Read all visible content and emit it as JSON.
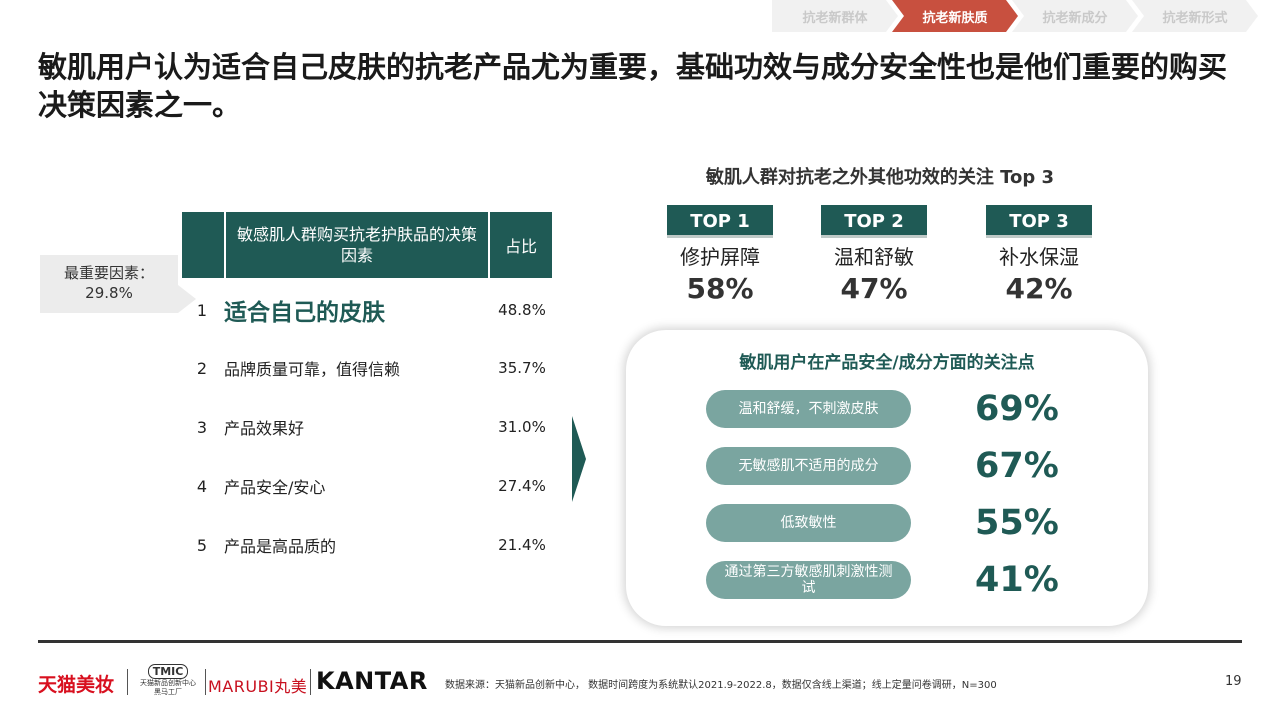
{
  "nav": {
    "steps": [
      {
        "label": "抗老新群体",
        "active": false
      },
      {
        "label": "抗老新肤质",
        "active": true
      },
      {
        "label": "抗老新成分",
        "active": false
      },
      {
        "label": "抗老新形式",
        "active": false
      }
    ]
  },
  "title": "敏肌用户认为适合自己皮肤的抗老产品尤为重要，基础功效与成分安全性也是他们重要的购买决策因素之一。",
  "table": {
    "callout": {
      "label": "最重要因素：",
      "value": "29.8%"
    },
    "header": {
      "factor": "敏感肌人群购买抗老护肤品的决策因素",
      "share": "占比"
    },
    "rows": [
      {
        "rank": "1",
        "label": "适合自己的皮肤",
        "pct": "48.8%"
      },
      {
        "rank": "2",
        "label": "品牌质量可靠，值得信赖",
        "pct": "35.7%"
      },
      {
        "rank": "3",
        "label": "产品效果好",
        "pct": "31.0%"
      },
      {
        "rank": "4",
        "label": "产品安全/安心",
        "pct": "27.4%"
      },
      {
        "rank": "5",
        "label": "产品是高品质的",
        "pct": "21.4%"
      }
    ]
  },
  "top3": {
    "title": "敏肌人群对抗老之外其他功效的关注 Top 3",
    "items": [
      {
        "badge": "TOP 1",
        "name": "修护屏障",
        "value": "58%"
      },
      {
        "badge": "TOP 2",
        "name": "温和舒敏",
        "value": "47%"
      },
      {
        "badge": "TOP 3",
        "name": "补水保湿",
        "value": "42%"
      }
    ]
  },
  "safety": {
    "title": "敏肌用户在产品安全/成分方面的关注点",
    "items": [
      {
        "label": "温和舒缓，不刺激皮肤",
        "value": "69%"
      },
      {
        "label": "无敏感肌不适用的成分",
        "value": "67%"
      },
      {
        "label": "低致敏性",
        "value": "55%"
      },
      {
        "label": "通过第三方敏感肌刺激性测试",
        "value": "41%"
      }
    ]
  },
  "footer": {
    "logo_tmall": "天猫美妆",
    "logo_tmic_badge": "TMIC",
    "logo_tmic_sub1": "天猫新品创新中心",
    "logo_tmic_sub2": "黑马工厂",
    "logo_marubi": "MARUBI丸美",
    "logo_kantar": "KANTAR",
    "source": "数据来源：天猫新品创新中心， 数据时间跨度为系统默认2021.9-2022.8，数据仅含线上渠道；线上定量问卷调研，N=300",
    "page_number": "19"
  },
  "colors": {
    "primary": "#1f5a55",
    "pill": "#7aa5a0",
    "accent": "#c8503f",
    "brand_red": "#d8101f"
  }
}
